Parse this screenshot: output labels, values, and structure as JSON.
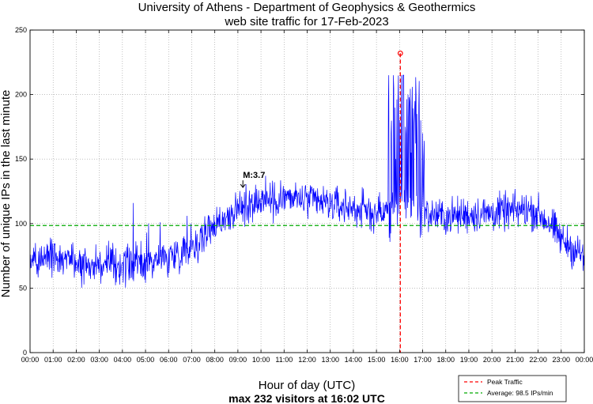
{
  "chart_data": {
    "type": "line",
    "title_line1": "University of Athens - Department of Geophysics & Geothermics",
    "title_line2": "web site traffic for 17-Feb-2023",
    "xlabel": "Hour of day (UTC)",
    "xsubtitle": "max 232 visitors at 16:02 UTC",
    "ylabel": "Number of unique IPs in the last minute",
    "ylim": [
      0,
      250
    ],
    "xlim_minutes": [
      0,
      1440
    ],
    "y_ticks": [
      "0",
      "50",
      "100",
      "150",
      "200",
      "250"
    ],
    "x_ticks": [
      "00:00",
      "01:00",
      "02:00",
      "03:00",
      "04:00",
      "05:00",
      "06:00",
      "07:00",
      "08:00",
      "09:00",
      "10:00",
      "11:00",
      "12:00",
      "13:00",
      "14:00",
      "15:00",
      "16:00",
      "17:00",
      "18:00",
      "19:00",
      "20:00",
      "21:00",
      "22:00",
      "23:00",
      "00:00"
    ],
    "grid": true,
    "baseline_profile": [
      [
        0,
        75
      ],
      [
        60,
        73
      ],
      [
        120,
        70
      ],
      [
        180,
        68
      ],
      [
        240,
        68
      ],
      [
        300,
        70
      ],
      [
        360,
        74
      ],
      [
        420,
        82
      ],
      [
        450,
        90
      ],
      [
        480,
        100
      ],
      [
        510,
        105
      ],
      [
        540,
        110
      ],
      [
        570,
        116
      ],
      [
        600,
        118
      ],
      [
        660,
        120
      ],
      [
        720,
        118
      ],
      [
        780,
        115
      ],
      [
        840,
        112
      ],
      [
        870,
        110
      ],
      [
        900,
        108
      ],
      [
        930,
        110
      ],
      [
        960,
        115
      ],
      [
        990,
        115
      ],
      [
        1020,
        108
      ],
      [
        1080,
        105
      ],
      [
        1140,
        107
      ],
      [
        1200,
        108
      ],
      [
        1260,
        110
      ],
      [
        1290,
        111
      ],
      [
        1320,
        108
      ],
      [
        1350,
        100
      ],
      [
        1380,
        88
      ],
      [
        1410,
        80
      ],
      [
        1440,
        75
      ]
    ],
    "spikes": [
      {
        "minute": 56,
        "value": 88
      },
      {
        "minute": 108,
        "value": 84
      },
      {
        "minute": 268,
        "value": 116
      },
      {
        "minute": 303,
        "value": 93
      },
      {
        "minute": 308,
        "value": 100
      },
      {
        "minute": 338,
        "value": 99
      },
      {
        "minute": 338,
        "value": 101
      },
      {
        "minute": 408,
        "value": 106
      },
      {
        "minute": 418,
        "value": 100
      },
      {
        "minute": 612,
        "value": 137
      },
      {
        "minute": 632,
        "value": 100
      },
      {
        "minute": 938,
        "value": 170
      },
      {
        "minute": 945,
        "value": 205
      },
      {
        "minute": 950,
        "value": 150
      },
      {
        "minute": 956,
        "value": 196
      },
      {
        "minute": 960,
        "value": 180
      },
      {
        "minute": 968,
        "value": 197
      },
      {
        "minute": 975,
        "value": 175
      },
      {
        "minute": 982,
        "value": 200
      },
      {
        "minute": 985,
        "value": 198
      },
      {
        "minute": 990,
        "value": 155
      },
      {
        "minute": 1000,
        "value": 195
      },
      {
        "minute": 1005,
        "value": 185
      },
      {
        "minute": 1015,
        "value": 180
      },
      {
        "minute": 1020,
        "value": 170
      },
      {
        "minute": 1400,
        "value": 78
      }
    ],
    "series": [
      {
        "name": "traffic",
        "color": "#0000ff"
      },
      {
        "name": "Peak Traffic",
        "color": "#ff0000",
        "x_minute": 962,
        "peak_value": 232
      },
      {
        "name": "Average: 98.5 IPs/min",
        "color": "#00aa00",
        "value": 98.5
      }
    ],
    "legend": {
      "placement": "bottom-right",
      "entries": [
        "Peak Traffic",
        "Average: 98.5 IPs/min"
      ]
    },
    "annotation": {
      "text": "M:3.7",
      "minute": 553,
      "value": 128
    }
  }
}
